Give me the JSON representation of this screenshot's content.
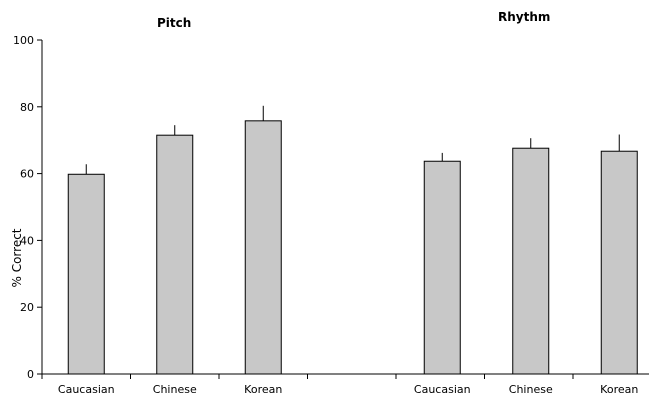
{
  "chart_data": {
    "type": "bar",
    "groups": [
      {
        "title": "Pitch",
        "categories": [
          "Caucasian",
          "Chinese",
          "Korean"
        ],
        "values": [
          59.8,
          71.5,
          75.8
        ],
        "error": [
          3.0,
          3.0,
          4.5
        ]
      },
      {
        "title": "Rhythm",
        "categories": [
          "Caucasian",
          "Chinese",
          "Korean"
        ],
        "values": [
          63.7,
          67.6,
          66.7
        ],
        "error": [
          2.5,
          3.0,
          5.0
        ]
      }
    ],
    "ylabel": "% Correct",
    "ylim": [
      0,
      100
    ],
    "yticks": [
      0,
      20,
      40,
      60,
      80,
      100
    ],
    "bar_color": "#c8c8c8",
    "bar_edge_color": "#000000",
    "grid": false
  }
}
